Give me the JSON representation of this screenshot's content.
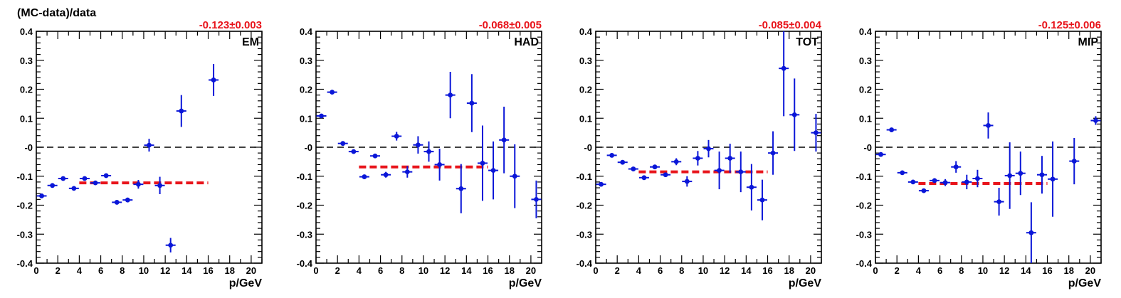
{
  "figure": {
    "ylabel": "(MC-data)/data"
  },
  "chart_data": [
    {
      "type": "scatter",
      "panel_label": "EM",
      "fit_label": "-0.123±0.003",
      "fit_value": -0.123,
      "fit_range": [
        4,
        16
      ],
      "xlabel": "p/GeV",
      "xlim": [
        0,
        21
      ],
      "ylim": [
        -0.4,
        0.4
      ],
      "x_ticks": [
        "0",
        "2",
        "4",
        "6",
        "8",
        "10",
        "12",
        "14",
        "16",
        "18",
        "20"
      ],
      "y_ticks": [
        "-0.4",
        "-0.3",
        "-0.2",
        "-0.1",
        "-0",
        "0.1",
        "0.2",
        "0.3",
        "0.4"
      ],
      "colors": {
        "points": "#0a16d8",
        "fit": "#e8141b",
        "zero_line": "#000000"
      },
      "points": [
        {
          "x": 0.5,
          "y": -0.168,
          "err": 0.006
        },
        {
          "x": 1.5,
          "y": -0.132,
          "err": 0.005
        },
        {
          "x": 2.5,
          "y": -0.108,
          "err": 0.005
        },
        {
          "x": 3.5,
          "y": -0.142,
          "err": 0.005
        },
        {
          "x": 4.5,
          "y": -0.108,
          "err": 0.005
        },
        {
          "x": 5.5,
          "y": -0.123,
          "err": 0.006
        },
        {
          "x": 6.5,
          "y": -0.098,
          "err": 0.006
        },
        {
          "x": 7.5,
          "y": -0.19,
          "err": 0.007
        },
        {
          "x": 8.5,
          "y": -0.182,
          "err": 0.008
        },
        {
          "x": 9.5,
          "y": -0.128,
          "err": 0.015
        },
        {
          "x": 10.5,
          "y": 0.007,
          "err": 0.022
        },
        {
          "x": 11.5,
          "y": -0.132,
          "err": 0.03
        },
        {
          "x": 12.5,
          "y": -0.338,
          "err": 0.025
        },
        {
          "x": 13.5,
          "y": 0.125,
          "err": 0.055
        },
        {
          "x": 16.5,
          "y": 0.232,
          "err": 0.055
        }
      ]
    },
    {
      "type": "scatter",
      "panel_label": "HAD",
      "fit_label": "-0.068±0.005",
      "fit_value": -0.068,
      "fit_range": [
        4,
        16
      ],
      "xlabel": "p/GeV",
      "xlim": [
        0,
        21
      ],
      "ylim": [
        -0.4,
        0.4
      ],
      "x_ticks": [
        "0",
        "2",
        "4",
        "6",
        "8",
        "10",
        "12",
        "14",
        "16",
        "18",
        "20"
      ],
      "y_ticks": [
        "-0.4",
        "-0.3",
        "-0.2",
        "-0.1",
        "-0",
        "0.1",
        "0.2",
        "0.3",
        "0.4"
      ],
      "colors": {
        "points": "#0a16d8",
        "fit": "#e8141b",
        "zero_line": "#000000"
      },
      "points": [
        {
          "x": 0.5,
          "y": 0.108,
          "err": 0.007
        },
        {
          "x": 1.5,
          "y": 0.19,
          "err": 0.005
        },
        {
          "x": 2.5,
          "y": 0.013,
          "err": 0.005
        },
        {
          "x": 3.5,
          "y": -0.015,
          "err": 0.005
        },
        {
          "x": 4.5,
          "y": -0.102,
          "err": 0.005
        },
        {
          "x": 5.5,
          "y": -0.03,
          "err": 0.006
        },
        {
          "x": 6.5,
          "y": -0.095,
          "err": 0.01
        },
        {
          "x": 7.5,
          "y": 0.038,
          "err": 0.015
        },
        {
          "x": 8.5,
          "y": -0.085,
          "err": 0.02
        },
        {
          "x": 9.5,
          "y": 0.008,
          "err": 0.03
        },
        {
          "x": 10.5,
          "y": -0.015,
          "err": 0.035
        },
        {
          "x": 11.5,
          "y": -0.06,
          "err": 0.055
        },
        {
          "x": 12.5,
          "y": 0.18,
          "err": 0.08
        },
        {
          "x": 13.5,
          "y": -0.143,
          "err": 0.085
        },
        {
          "x": 14.5,
          "y": 0.152,
          "err": 0.1
        },
        {
          "x": 15.5,
          "y": -0.055,
          "err": 0.13
        },
        {
          "x": 16.5,
          "y": -0.08,
          "err": 0.1
        },
        {
          "x": 17.5,
          "y": 0.025,
          "err": 0.115
        },
        {
          "x": 18.5,
          "y": -0.1,
          "err": 0.11
        },
        {
          "x": 20.5,
          "y": -0.18,
          "err": 0.065
        }
      ]
    },
    {
      "type": "scatter",
      "panel_label": "TOT",
      "fit_label": "-0.085±0.004",
      "fit_value": -0.085,
      "fit_range": [
        4,
        16
      ],
      "xlabel": "p/GeV",
      "xlim": [
        0,
        21
      ],
      "ylim": [
        -0.4,
        0.4
      ],
      "x_ticks": [
        "0",
        "2",
        "4",
        "6",
        "8",
        "10",
        "12",
        "14",
        "16",
        "18",
        "20"
      ],
      "y_ticks": [
        "-0.4",
        "-0.3",
        "-0.2",
        "-0.1",
        "-0",
        "0.1",
        "0.2",
        "0.3",
        "0.4"
      ],
      "colors": {
        "points": "#0a16d8",
        "fit": "#e8141b",
        "zero_line": "#000000"
      },
      "points": [
        {
          "x": 0.5,
          "y": -0.128,
          "err": 0.006
        },
        {
          "x": 1.5,
          "y": -0.028,
          "err": 0.005
        },
        {
          "x": 2.5,
          "y": -0.052,
          "err": 0.005
        },
        {
          "x": 3.5,
          "y": -0.075,
          "err": 0.005
        },
        {
          "x": 4.5,
          "y": -0.105,
          "err": 0.005
        },
        {
          "x": 5.5,
          "y": -0.068,
          "err": 0.006
        },
        {
          "x": 6.5,
          "y": -0.095,
          "err": 0.008
        },
        {
          "x": 7.5,
          "y": -0.05,
          "err": 0.012
        },
        {
          "x": 8.5,
          "y": -0.118,
          "err": 0.018
        },
        {
          "x": 9.5,
          "y": -0.038,
          "err": 0.025
        },
        {
          "x": 10.5,
          "y": -0.005,
          "err": 0.03
        },
        {
          "x": 11.5,
          "y": -0.08,
          "err": 0.065
        },
        {
          "x": 12.5,
          "y": -0.038,
          "err": 0.05
        },
        {
          "x": 13.5,
          "y": -0.085,
          "err": 0.07
        },
        {
          "x": 14.5,
          "y": -0.138,
          "err": 0.08
        },
        {
          "x": 15.5,
          "y": -0.182,
          "err": 0.07
        },
        {
          "x": 16.5,
          "y": -0.02,
          "err": 0.075
        },
        {
          "x": 17.5,
          "y": 0.272,
          "err": 0.165
        },
        {
          "x": 18.5,
          "y": 0.112,
          "err": 0.125
        },
        {
          "x": 20.5,
          "y": 0.05,
          "err": 0.065
        }
      ]
    },
    {
      "type": "scatter",
      "panel_label": "MIP",
      "fit_label": "-0.125±0.006",
      "fit_value": -0.125,
      "fit_range": [
        4,
        16
      ],
      "xlabel": "p/GeV",
      "xlim": [
        0,
        21
      ],
      "ylim": [
        -0.4,
        0.4
      ],
      "x_ticks": [
        "0",
        "2",
        "4",
        "6",
        "8",
        "10",
        "12",
        "14",
        "16",
        "18",
        "20"
      ],
      "y_ticks": [
        "-0.4",
        "-0.3",
        "-0.2",
        "-0.1",
        "-0",
        "0.1",
        "0.2",
        "0.3",
        "0.4"
      ],
      "colors": {
        "points": "#0a16d8",
        "fit": "#e8141b",
        "zero_line": "#000000"
      },
      "points": [
        {
          "x": 0.5,
          "y": -0.025,
          "err": 0.006
        },
        {
          "x": 1.5,
          "y": 0.06,
          "err": 0.005
        },
        {
          "x": 2.5,
          "y": -0.088,
          "err": 0.005
        },
        {
          "x": 3.5,
          "y": -0.12,
          "err": 0.005
        },
        {
          "x": 4.5,
          "y": -0.15,
          "err": 0.006
        },
        {
          "x": 5.5,
          "y": -0.115,
          "err": 0.008
        },
        {
          "x": 6.5,
          "y": -0.122,
          "err": 0.012
        },
        {
          "x": 7.5,
          "y": -0.068,
          "err": 0.02
        },
        {
          "x": 8.5,
          "y": -0.12,
          "err": 0.025
        },
        {
          "x": 9.5,
          "y": -0.108,
          "err": 0.03
        },
        {
          "x": 10.5,
          "y": 0.075,
          "err": 0.045
        },
        {
          "x": 11.5,
          "y": -0.188,
          "err": 0.048
        },
        {
          "x": 12.5,
          "y": -0.098,
          "err": 0.115
        },
        {
          "x": 13.5,
          "y": -0.09,
          "err": 0.075
        },
        {
          "x": 14.5,
          "y": -0.295,
          "err": 0.105
        },
        {
          "x": 15.5,
          "y": -0.095,
          "err": 0.065
        },
        {
          "x": 16.5,
          "y": -0.11,
          "err": 0.13
        },
        {
          "x": 18.5,
          "y": -0.048,
          "err": 0.08
        },
        {
          "x": 20.5,
          "y": 0.092,
          "err": 0.015
        }
      ]
    }
  ]
}
